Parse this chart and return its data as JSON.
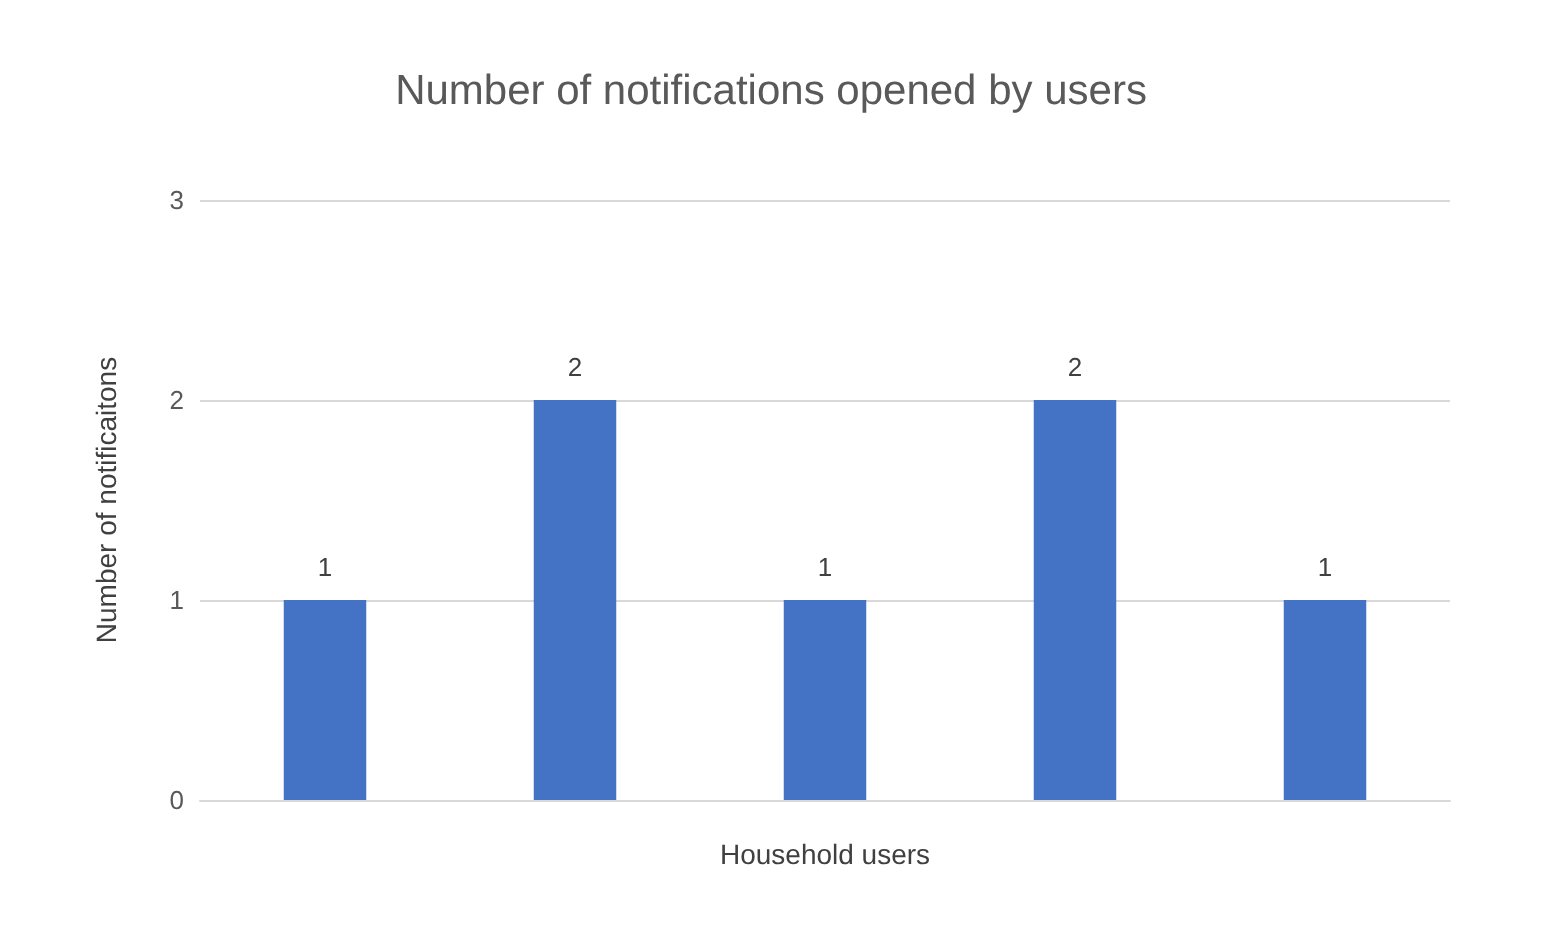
{
  "chart_data": {
    "type": "bar",
    "title": "Number of notifications opened by users",
    "xlabel": "Household users",
    "ylabel": "Number of notificaitons",
    "categories": [
      null,
      null,
      null,
      null,
      null
    ],
    "values": [
      1,
      2,
      1,
      2,
      1
    ],
    "color": "#4472c4",
    "ylim": [
      0,
      3
    ],
    "yticks": [
      0,
      1,
      2,
      3
    ],
    "grid": "y",
    "data_labels": true
  }
}
